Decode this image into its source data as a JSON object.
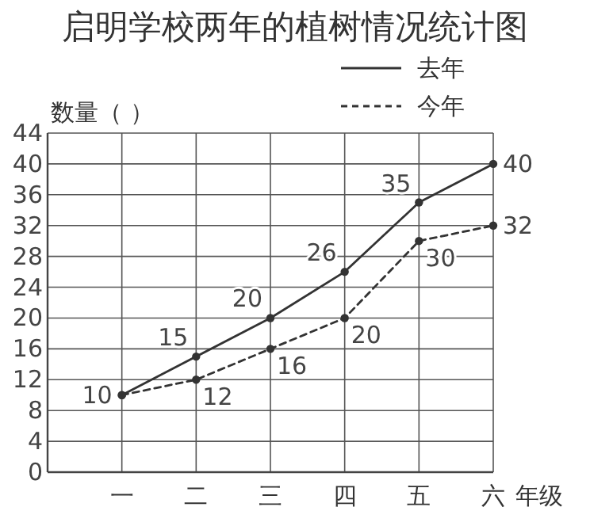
{
  "chart_data": {
    "type": "line",
    "title": "启明学校两年的植树情况统计图",
    "ylabel": "数量（ ）",
    "xlabel": "年级",
    "categories": [
      "一",
      "二",
      "三",
      "四",
      "五",
      "六"
    ],
    "series": [
      {
        "name": "去年",
        "color": "#333333",
        "line_style": "solid",
        "values": [
          10,
          15,
          20,
          26,
          35,
          40
        ]
      },
      {
        "name": "今年",
        "color": "#333333",
        "line_style": "dashed",
        "values": [
          10,
          12,
          16,
          20,
          30,
          32
        ],
        "value_labels": [
          null,
          "12",
          "16",
          "20",
          "30",
          "32"
        ]
      }
    ],
    "ylim": [
      0,
      44
    ],
    "yticks": [
      0,
      4,
      8,
      12,
      16,
      20,
      24,
      28,
      32,
      36,
      40,
      44
    ],
    "grid": true,
    "legend": "top right",
    "marker": "circle",
    "data_labels": true
  }
}
